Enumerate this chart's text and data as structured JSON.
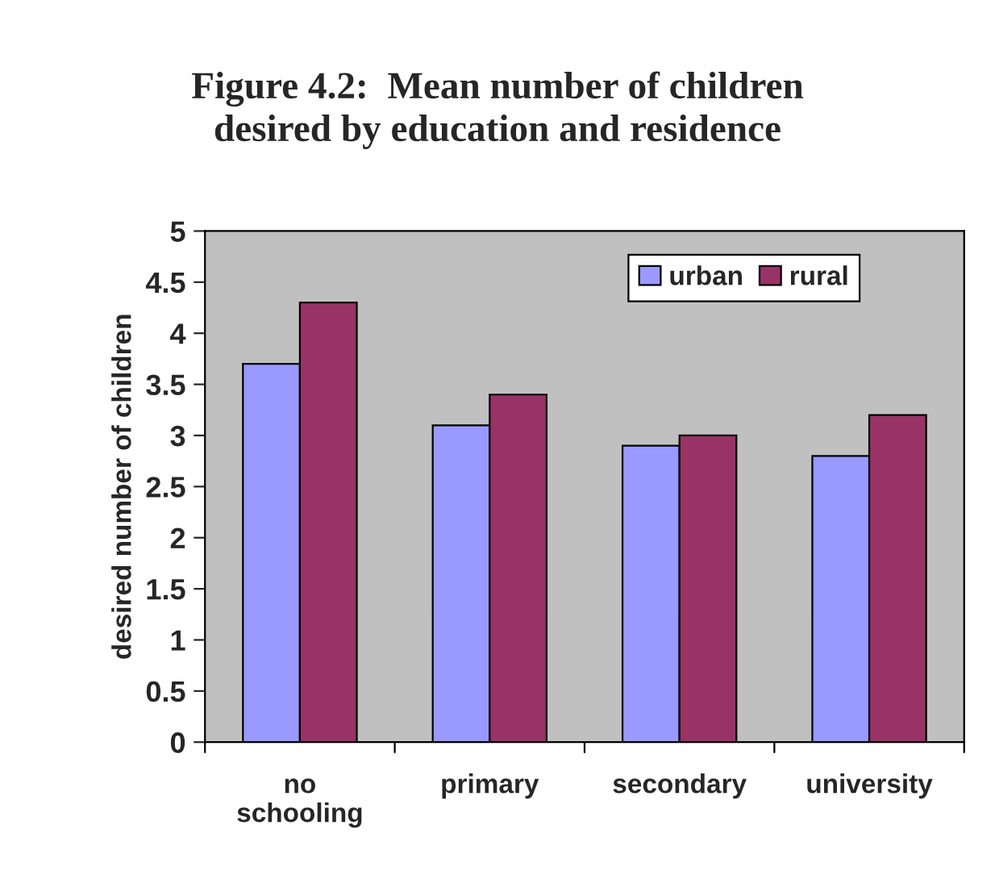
{
  "chart_data": {
    "type": "bar",
    "title": "Figure 4.2:  Mean number of children\ndesired by education and residence",
    "ylabel": "desired number of children",
    "categories": [
      "no\nschooling",
      "primary",
      "secondary",
      "university"
    ],
    "series": [
      {
        "name": "urban",
        "color": "#9999ff",
        "values": [
          3.7,
          3.1,
          2.9,
          2.8
        ]
      },
      {
        "name": "rural",
        "color": "#993366",
        "values": [
          4.3,
          3.4,
          3.0,
          3.2
        ]
      }
    ],
    "ylim": [
      0,
      5
    ],
    "yticks": [
      0,
      0.5,
      1,
      1.5,
      2,
      2.5,
      3,
      3.5,
      4,
      4.5,
      5
    ],
    "grid": false,
    "legend": "top right"
  }
}
